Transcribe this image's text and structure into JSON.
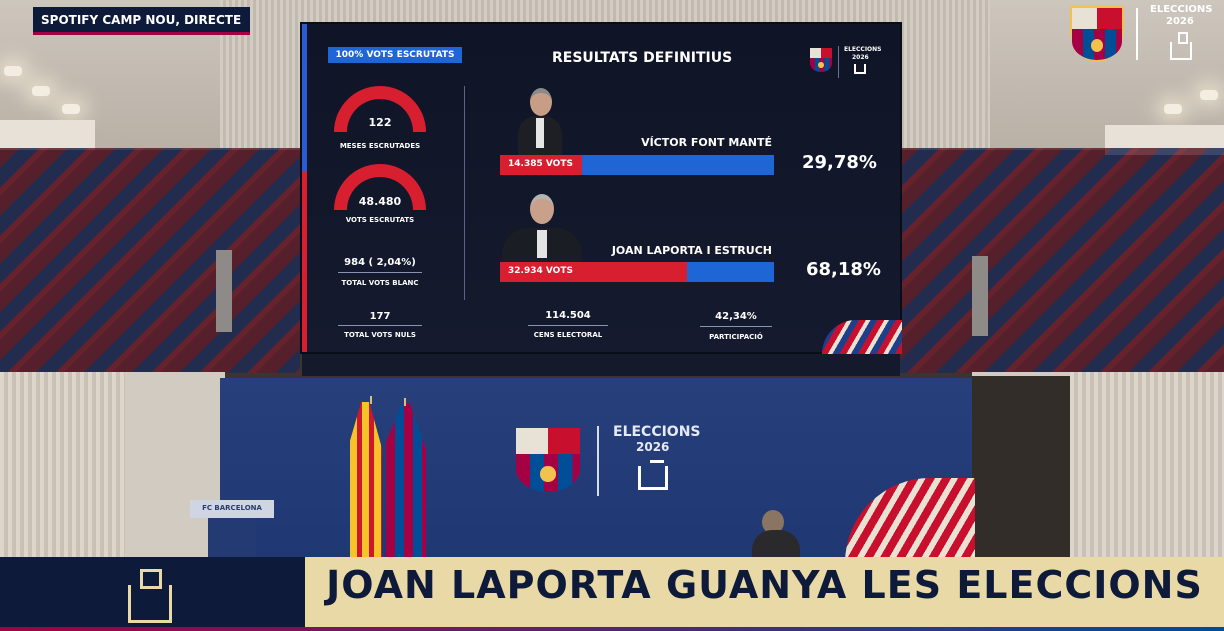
{
  "broadcast": {
    "live_label": "SPOTIFY CAMP NOU, DIRECTE",
    "corner_title": "ELECCIONS",
    "corner_year": "2026"
  },
  "screen": {
    "counted_badge": "100% VOTS ESCRUTATS",
    "title": "RESULTATS DEFINITIUS",
    "logo_title": "ELECCIONS",
    "logo_year": "2026",
    "stats": [
      {
        "value": "122",
        "label": "MESES ESCRUTADES"
      },
      {
        "value": "48.480",
        "label": "VOTS ESCRUTATS"
      },
      {
        "value": "984 ( 2,04%)",
        "label": "TOTAL VOTS BLANC"
      },
      {
        "value": "177",
        "label": "TOTAL VOTS NULS"
      }
    ],
    "bottom_stats": [
      {
        "value": "114.504",
        "label": "CENS ELECTORAL"
      },
      {
        "value": "42,34%",
        "label": "PARTICIPACIÓ"
      }
    ],
    "candidates": [
      {
        "name": "VÍCTOR FONT MANTÉ",
        "votes": "14.385 VOTS",
        "percent": "29,78%",
        "share": 0.2978
      },
      {
        "name": "JOAN LAPORTA I ESTRUCH",
        "votes": "32.934 VOTS",
        "percent": "68,18%",
        "share": 0.6818
      }
    ]
  },
  "stage": {
    "podium_label": "FC BARCELONA",
    "backdrop_title": "ELECCIONS",
    "backdrop_year": "2026"
  },
  "ticker": {
    "headline": "JOAN LAPORTA GUANYA LES ELECCIONS"
  },
  "colors": {
    "blaugrana_red": "#a50044",
    "blaugrana_blue": "#004d98",
    "accent_red": "#d81f2f",
    "accent_blue": "#1e66d6",
    "ticker_gold": "#e9d9a7",
    "ticker_navy": "#0e1a3a"
  }
}
